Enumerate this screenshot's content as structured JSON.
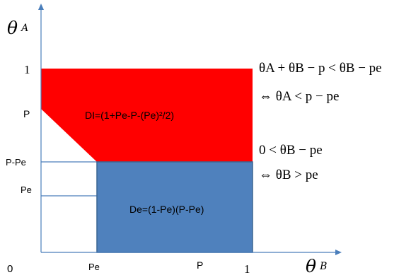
{
  "axes": {
    "y_label": {
      "symbol": "θ",
      "sub": "A"
    },
    "x_label": {
      "symbol": "θ",
      "sub": "B"
    },
    "origin": "0"
  },
  "y_ticks": [
    {
      "label": "1",
      "value": 1.0
    },
    {
      "label": "P",
      "value": 0.58
    },
    {
      "label": "P-Pe",
      "value": 0.42
    },
    {
      "label": "Pe",
      "value": 0.26
    }
  ],
  "x_ticks": [
    {
      "label": "Pe",
      "value": 0.26
    },
    {
      "label": "P",
      "value": 0.76
    },
    {
      "label": "1",
      "value": 1.0
    }
  ],
  "regions": {
    "red": {
      "label": "DI=(1+Pe-P-(Pe)²/2)",
      "color": "#ff0000"
    },
    "blue": {
      "label": "De=(1-Pe)(P-Pe)",
      "color": "#4f81bd"
    }
  },
  "equations": {
    "eq1": "θA + θB − p < θB − pe",
    "eq2": "⇔ θA < p − pe",
    "eq3": "0 < θB − pe",
    "eq4": "⇔ θB > pe"
  },
  "colors": {
    "axis": "#4a7ebb",
    "guide": "#4a7ebb"
  }
}
